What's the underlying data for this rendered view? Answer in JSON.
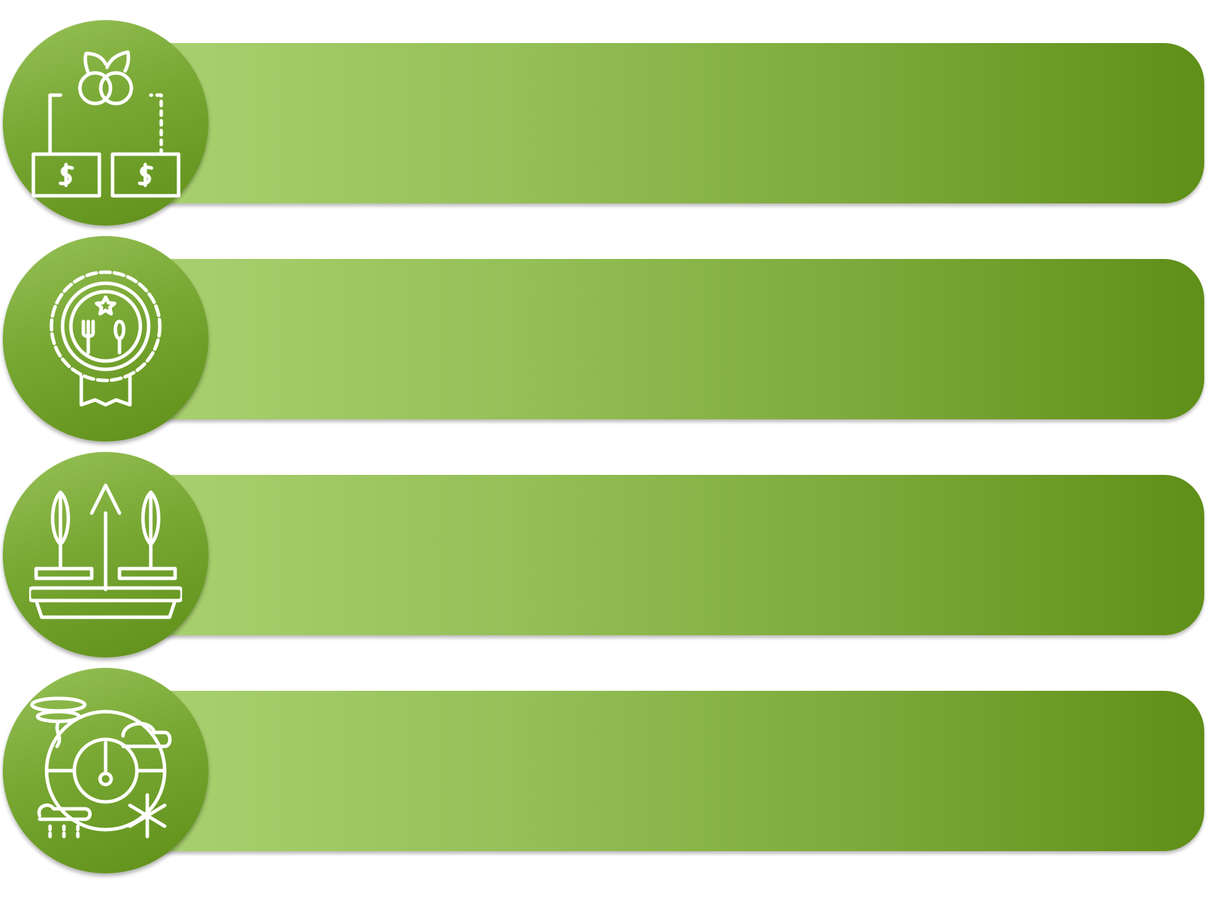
{
  "colors": {
    "bar_light": "#a9d06f",
    "bar_dark": "#5f8f18",
    "circle_light": "#97c257",
    "circle_dark": "#5e8f18",
    "icon": "#ffffff"
  },
  "rows": [
    {
      "icon": "fruit-price-money-icon"
    },
    {
      "icon": "food-quality-badge-icon"
    },
    {
      "icon": "crop-growth-planter-icon"
    },
    {
      "icon": "climate-weather-icon"
    }
  ]
}
